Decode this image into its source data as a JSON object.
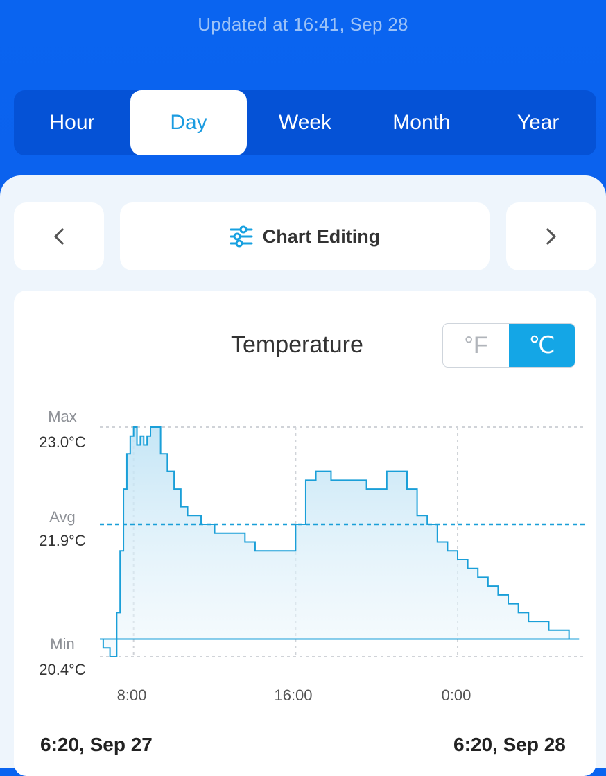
{
  "header": {
    "updated": "Updated at 16:41,  Sep 28"
  },
  "tabs": [
    {
      "label": "Hour",
      "active": false
    },
    {
      "label": "Day",
      "active": true
    },
    {
      "label": "Week",
      "active": false
    },
    {
      "label": "Month",
      "active": false
    },
    {
      "label": "Year",
      "active": false
    }
  ],
  "toolbar": {
    "prev_icon": "chevron-left-icon",
    "next_icon": "chevron-right-icon",
    "edit_icon": "sliders-icon",
    "edit_label": "Chart Editing"
  },
  "chart": {
    "title": "Temperature",
    "units": {
      "fahrenheit": "°F",
      "celsius": "℃",
      "selected": "celsius"
    },
    "max_label": "Max",
    "max_value": "23.0°C",
    "avg_label": "Avg",
    "avg_value": "21.9°C",
    "min_label": "Min",
    "min_value": "20.4°C",
    "range_start": "6:20,  Sep 27",
    "range_end": "6:20,  Sep 28",
    "colors": {
      "line": "#1a9fd8",
      "avg_line": "#1a9fd8",
      "grid": "#d0d3d8"
    }
  },
  "chart_data": {
    "type": "area",
    "title": "Temperature",
    "x_ticks": [
      "8:00",
      "16:00",
      "0:00"
    ],
    "ylim": [
      20.4,
      23.0
    ],
    "reference_lines": [
      {
        "label": "Max",
        "value": 23.0
      },
      {
        "label": "Avg",
        "value": 21.9
      },
      {
        "label": "Min",
        "value": 20.4
      }
    ],
    "series": [
      {
        "x": [
          "6:20",
          "6:30",
          "6:40",
          "6:50",
          "7:00",
          "7:10",
          "7:20",
          "7:30",
          "7:40",
          "7:50",
          "8:00",
          "8:10",
          "8:20",
          "8:30",
          "8:40",
          "8:50",
          "9:00",
          "9:20",
          "9:40",
          "10:00",
          "10:20",
          "10:40",
          "11:00",
          "11:20",
          "11:40",
          "12:00",
          "12:30",
          "13:00",
          "13:30",
          "14:00",
          "14:30",
          "15:00",
          "15:30",
          "16:00",
          "16:30",
          "17:00",
          "17:15",
          "17:30",
          "17:45",
          "18:00",
          "18:30",
          "19:00",
          "19:30",
          "20:00",
          "20:30",
          "21:00",
          "21:30",
          "22:00",
          "22:30",
          "23:00",
          "23:30",
          "0:00",
          "0:30",
          "1:00",
          "1:30",
          "2:00",
          "2:30",
          "3:00",
          "3:30",
          "4:00",
          "4:30",
          "5:00",
          "5:30",
          "6:00",
          "6:20"
        ],
        "values": [
          20.6,
          20.5,
          20.5,
          20.4,
          20.4,
          20.9,
          21.6,
          22.3,
          22.7,
          22.9,
          23.0,
          22.8,
          22.9,
          22.8,
          22.9,
          23.0,
          23.0,
          22.7,
          22.5,
          22.3,
          22.1,
          22.0,
          22.0,
          21.9,
          21.9,
          21.8,
          21.8,
          21.8,
          21.7,
          21.6,
          21.6,
          21.6,
          21.6,
          21.9,
          22.4,
          22.5,
          22.5,
          22.5,
          22.4,
          22.4,
          22.4,
          22.4,
          22.3,
          22.3,
          22.5,
          22.5,
          22.3,
          22.0,
          21.9,
          21.7,
          21.6,
          21.5,
          21.4,
          21.3,
          21.2,
          21.1,
          21.0,
          20.9,
          20.8,
          20.8,
          20.7,
          20.7,
          20.6,
          20.6,
          20.6
        ]
      }
    ]
  }
}
